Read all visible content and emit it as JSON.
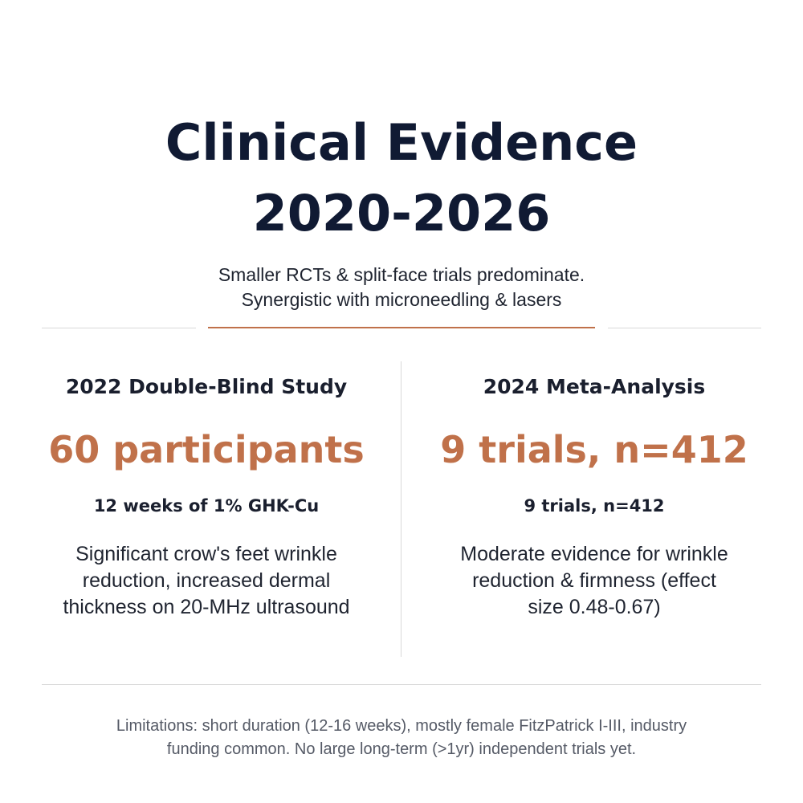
{
  "header": {
    "title_lines": [
      "Clinical Evidence",
      "2020-2026"
    ],
    "subtitle_lines": [
      "Smaller RCTs & split-face trials predominate.",
      "Synergistic with microneedling & lasers"
    ]
  },
  "columns": [
    {
      "title": "2022 Double-Blind Study",
      "stat": "60 participants",
      "subheading": "12 weeks of 1% GHK-Cu",
      "body_lines": [
        "Significant crow's feet wrinkle",
        "reduction, increased dermal",
        "thickness on 20-MHz ultrasound"
      ]
    },
    {
      "title": "2024 Meta-Analysis",
      "stat": "9 trials, n=412",
      "subheading": "9 trials, n=412",
      "body_lines": [
        "Moderate evidence for wrinkle",
        "reduction & firmness (effect",
        "size 0.48-0.67)"
      ]
    }
  ],
  "footer": {
    "lines": [
      "Limitations: short duration (12-16 weeks), mostly female FitzPatrick I-III, industry",
      "funding common. No large long-term (>1yr) independent trials yet."
    ]
  },
  "colors": {
    "title": "#101a33",
    "accent": "#c0714a",
    "divider": "#d9d9d9",
    "footer_text": "#555a66"
  }
}
